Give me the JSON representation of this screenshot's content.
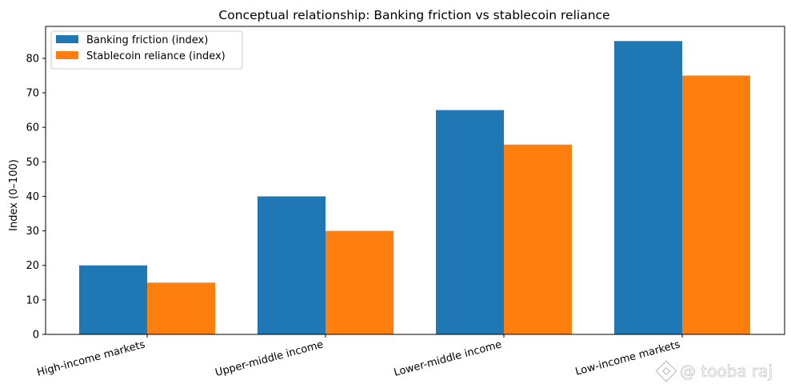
{
  "chart_data": {
    "type": "bar",
    "title": "Conceptual relationship: Banking friction vs stablecoin reliance",
    "xlabel": "",
    "ylabel": "Index (0–100)",
    "categories": [
      "High-income markets",
      "Upper-middle income",
      "Lower-middle income",
      "Low-income markets"
    ],
    "series": [
      {
        "name": "Banking friction (index)",
        "values": [
          20,
          40,
          65,
          85
        ],
        "color": "#1f77b4"
      },
      {
        "name": "Stablecoin reliance (index)",
        "values": [
          15,
          30,
          55,
          75
        ],
        "color": "#ff7f0e"
      }
    ],
    "ylim": [
      0,
      89.25
    ],
    "yticks": [
      "0",
      "10",
      "20",
      "30",
      "40",
      "50",
      "60",
      "70",
      "80"
    ],
    "grid": false,
    "legend_position": "top-left"
  },
  "watermark": {
    "icon": "binance-logo-icon",
    "text": "@ tooba raj"
  }
}
